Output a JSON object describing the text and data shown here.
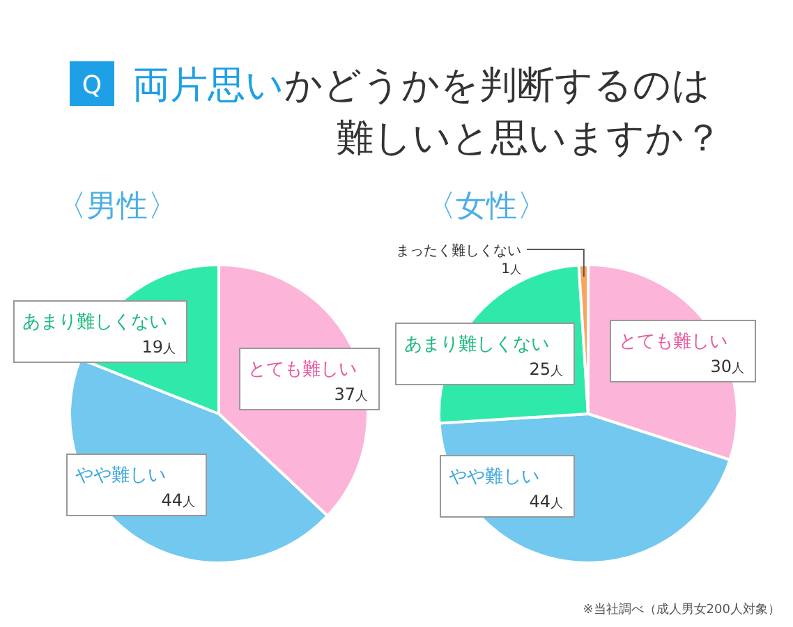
{
  "chart_data": [
    {
      "type": "pie",
      "title": "両片思いかどうかを判断するのは難しいと思いますか？",
      "subtitle": "〈男性〉",
      "annotations": [
        "Q"
      ],
      "categories": [
        "とても難しい",
        "やや難しい",
        "あまり難しくない"
      ],
      "values": [
        37,
        44,
        19
      ],
      "colors": [
        "#fcb4d8",
        "#72c8ee",
        "#2fe9aa"
      ],
      "value_labels": [
        "37人",
        "44人",
        "19人"
      ]
    },
    {
      "type": "pie",
      "subtitle": "〈女性〉",
      "annotations": [
        "※当社調べ（成人男女200人対象）"
      ],
      "categories": [
        "とても難しい",
        "やや難しい",
        "あまり難しくない",
        "まったく難しくない"
      ],
      "values": [
        30,
        44,
        25,
        1
      ],
      "colors": [
        "#fcb4d8",
        "#72c8ee",
        "#2fe9aa",
        "#f7a55c"
      ],
      "value_labels": [
        "30人",
        "44人",
        "25人",
        "1人"
      ]
    }
  ]
}
